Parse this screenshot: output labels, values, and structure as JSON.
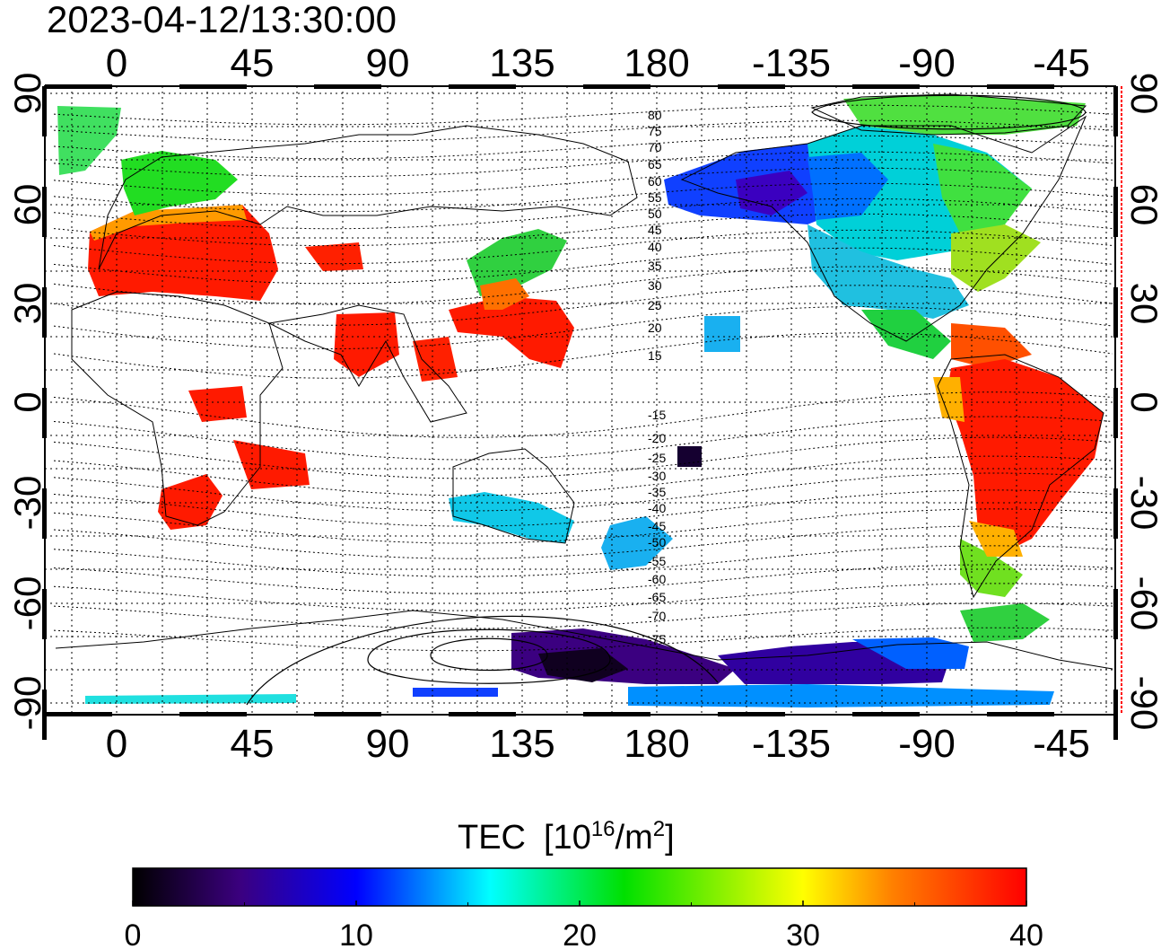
{
  "timestamp": "2023-04-12/13:30:00",
  "map": {
    "lon_ticks_top": [
      "0",
      "45",
      "90",
      "135",
      "180",
      "-135",
      "-90",
      "-45"
    ],
    "lon_ticks_bottom": [
      "0",
      "45",
      "90",
      "135",
      "180",
      "-135",
      "-90",
      "-45"
    ],
    "lat_ticks_left": [
      "90",
      "60",
      "30",
      "0",
      "-30",
      "-60",
      "-90"
    ],
    "lat_ticks_right": [
      "90",
      "60",
      "30",
      "0",
      "-30",
      "-60",
      "-90"
    ],
    "contour_labels": [
      "80",
      "75",
      "70",
      "65",
      "60",
      "55",
      "50",
      "45",
      "40",
      "35",
      "30",
      "25",
      "20",
      "15",
      "-15",
      "-20",
      "-25",
      "-30",
      "-35",
      "-40",
      "-45",
      "-50",
      "-55",
      "-60",
      "-65",
      "-70",
      "-75"
    ]
  },
  "colorbar": {
    "title": "TEC",
    "unit_base": "[10",
    "unit_exp": "16",
    "unit_mid": "/m",
    "unit_exp2": "2",
    "unit_end": "]",
    "ticks": [
      "0",
      "10",
      "20",
      "30",
      "40"
    ]
  },
  "colors": {
    "stops": [
      "#000000",
      "#3b007f",
      "#0000ff",
      "#00ffff",
      "#00e000",
      "#ffff00",
      "#ff8000",
      "#ff0000"
    ]
  },
  "tec_regions": [
    {
      "name": "europe",
      "value": 38
    },
    {
      "name": "scandinavia",
      "value": 24
    },
    {
      "name": "north-america-west",
      "value": 11
    },
    {
      "name": "north-america-east",
      "value": 22
    },
    {
      "name": "canada-arctic",
      "value": 24
    },
    {
      "name": "south-america",
      "value": 39
    },
    {
      "name": "southern-africa",
      "value": 39
    },
    {
      "name": "east-asia",
      "value": 38
    },
    {
      "name": "japan",
      "value": 24
    },
    {
      "name": "australia",
      "value": 18
    },
    {
      "name": "new-zealand",
      "value": 16
    },
    {
      "name": "antarctica-pacific",
      "value": 4
    },
    {
      "name": "antarctica-atlantic",
      "value": 13
    }
  ]
}
